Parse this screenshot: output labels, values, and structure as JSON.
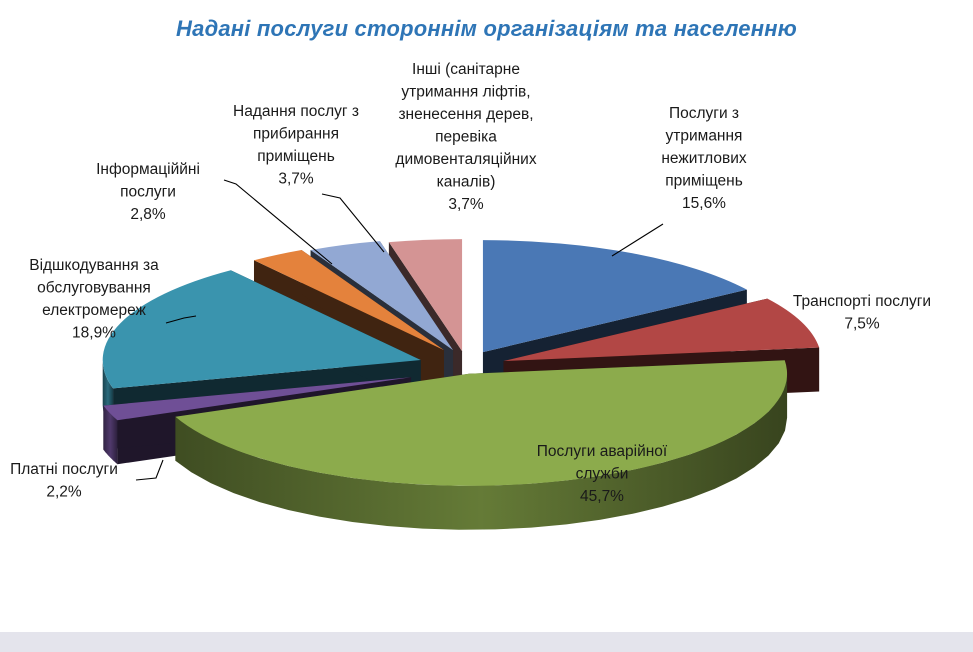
{
  "chart_data": {
    "type": "pie",
    "title": "Надані послуги стороннім організаціям  та населенню",
    "slices": [
      {
        "label": [
          "Послуги з",
          "утримання",
          "нежитлових",
          "приміщень",
          "15,6%"
        ],
        "value": 15.6,
        "color": "#4a78b5"
      },
      {
        "label": [
          "Транспорті послуги",
          "7,5%"
        ],
        "value": 7.5,
        "color": "#b24745"
      },
      {
        "label": [
          "Послуги аварійної",
          "служби",
          "45,7%"
        ],
        "value": 45.7,
        "color": "#8cab4c"
      },
      {
        "label": [
          "Платні послуги",
          "2,2%"
        ],
        "value": 2.2,
        "color": "#6f4f96"
      },
      {
        "label": [
          "Відшкодування за",
          "обслуговування",
          "електромереж",
          "18,9%"
        ],
        "value": 18.9,
        "color": "#3a94ae"
      },
      {
        "label": [
          "Інформаціййні",
          "послуги",
          "2,8%"
        ],
        "value": 2.8,
        "color": "#e4823c"
      },
      {
        "label": [
          "Надання послуг з",
          "прибирання",
          "приміщень",
          "3,7%"
        ],
        "value": 3.7,
        "color": "#92a8d3"
      },
      {
        "label": [
          "Інші (санітарне",
          "утримання ліфтів,",
          "зненесення дерев,",
          "перевіка",
          "димовенталяційних",
          "каналів)",
          "3,7%"
        ],
        "value": 3.7,
        "color": "#d49494"
      }
    ]
  }
}
